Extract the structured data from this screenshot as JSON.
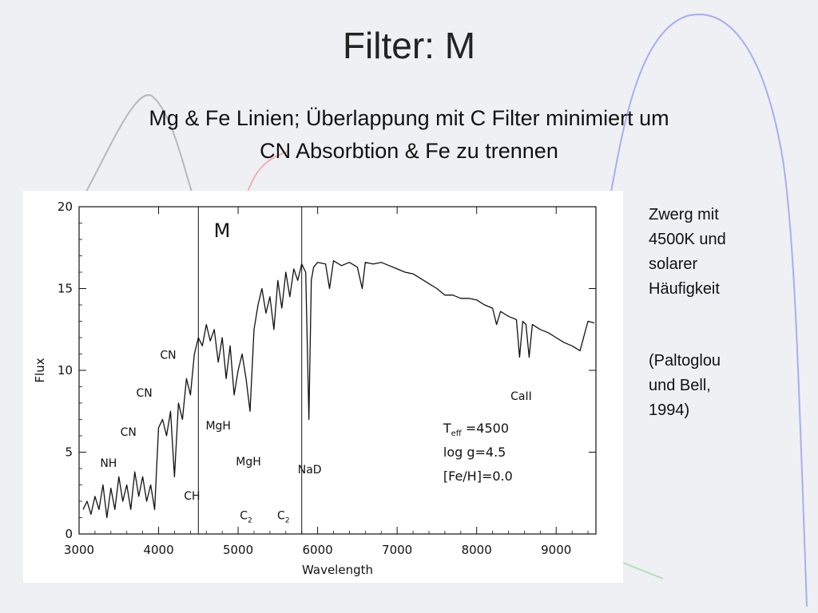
{
  "slide": {
    "title": "Filter: M",
    "subtitle_line1": "Mg & Fe Linien; Überlappung mit C Filter minimiert um",
    "subtitle_line2": "CN Absorbtion & Fe zu trennen",
    "note1_lines": [
      "Zwerg mit",
      "4500K und",
      "solarer",
      "Häufigkeit"
    ],
    "note2_lines": [
      "(Paltoglou",
      "und Bell,",
      "1994)"
    ]
  },
  "colors": {
    "background": "#eef0f4",
    "figure_background": "#ffffff",
    "curve_blue": "#a8aef0",
    "curve_gray": "#b8b8b8",
    "curve_red": "#f0b0b0",
    "curve_green": "#b0e0b8",
    "ink": "#111111"
  },
  "chart_data": {
    "type": "line",
    "xlabel": "Wavelength",
    "ylabel": "Flux",
    "xlim": [
      3000,
      9500
    ],
    "ylim": [
      0,
      20
    ],
    "xticks": [
      3000,
      4000,
      5000,
      6000,
      7000,
      8000,
      9000
    ],
    "yticks": [
      0,
      5,
      10,
      15,
      20
    ],
    "filter_band": {
      "label": "M",
      "from": 4500,
      "to": 5800
    },
    "series": [
      {
        "x": [
          3050,
          3100,
          3150,
          3200,
          3250,
          3300,
          3350,
          3400,
          3450,
          3500,
          3550,
          3600,
          3650,
          3700,
          3750,
          3800,
          3850,
          3900,
          3950,
          4000,
          4050,
          4100,
          4150,
          4200,
          4250,
          4300,
          4350,
          4400,
          4450,
          4500,
          4550,
          4600,
          4650,
          4700,
          4750,
          4800,
          4850,
          4900,
          4950,
          5000,
          5050,
          5100,
          5150,
          5200,
          5250,
          5300,
          5350,
          5400,
          5450,
          5500,
          5550,
          5600,
          5650,
          5700,
          5750,
          5800,
          5850,
          5890,
          5920,
          5950,
          6000,
          6100,
          6150,
          6200,
          6300,
          6400,
          6500,
          6560,
          6600,
          6700,
          6800,
          6900,
          7000,
          7100,
          7200,
          7300,
          7400,
          7500,
          7600,
          7700,
          7800,
          7900,
          8000,
          8100,
          8200,
          8250,
          8300,
          8400,
          8500,
          8540,
          8580,
          8620,
          8660,
          8700,
          8800,
          8900,
          9000,
          9100,
          9200,
          9300,
          9400,
          9480
        ],
        "y": [
          1.5,
          2.0,
          1.2,
          2.3,
          1.5,
          3.0,
          1.0,
          2.8,
          1.5,
          3.5,
          2.0,
          3.0,
          1.5,
          3.8,
          2.3,
          3.5,
          2.0,
          3.0,
          1.5,
          6.5,
          7.0,
          6.0,
          7.5,
          3.5,
          8.0,
          7.0,
          9.5,
          8.5,
          11.0,
          12.0,
          11.5,
          12.8,
          11.8,
          12.5,
          10.5,
          12.0,
          9.5,
          11.5,
          8.5,
          10.0,
          11.0,
          9.5,
          7.5,
          12.5,
          14.0,
          15.0,
          13.5,
          14.5,
          12.5,
          15.5,
          13.8,
          16.0,
          14.5,
          16.2,
          15.5,
          16.5,
          16.0,
          7.0,
          15.5,
          16.3,
          16.6,
          16.5,
          15.0,
          16.7,
          16.4,
          16.6,
          16.3,
          15.0,
          16.6,
          16.5,
          16.6,
          16.4,
          16.2,
          16.0,
          15.9,
          15.6,
          15.3,
          15.0,
          14.6,
          14.6,
          14.4,
          14.4,
          14.3,
          14.0,
          13.8,
          12.8,
          13.6,
          13.3,
          13.1,
          10.8,
          13.0,
          12.8,
          10.8,
          12.8,
          12.5,
          12.3,
          12.0,
          11.7,
          11.5,
          11.2,
          13.0,
          12.9
        ]
      }
    ],
    "annotations": [
      {
        "text": "NH",
        "x": 3370,
        "y": 4.1
      },
      {
        "text": "CN",
        "x": 3620,
        "y": 6.0
      },
      {
        "text": "CN",
        "x": 3820,
        "y": 8.4
      },
      {
        "text": "CN",
        "x": 4120,
        "y": 10.7
      },
      {
        "text": "CH",
        "x": 4420,
        "y": 2.1
      },
      {
        "text": "MgH",
        "x": 4750,
        "y": 6.4
      },
      {
        "text": "MgH",
        "x": 5130,
        "y": 4.2
      },
      {
        "text": "C",
        "sub": "2",
        "x": 5100,
        "y": 0.9
      },
      {
        "text": "C",
        "sub": "2",
        "x": 5570,
        "y": 0.9
      },
      {
        "text": "NaD",
        "x": 5900,
        "y": 3.7
      },
      {
        "text": "CaII",
        "x": 8560,
        "y": 8.2
      }
    ],
    "params": [
      {
        "label": "T",
        "sub": "eff",
        "value": "=4500"
      },
      {
        "label": "log g=4.5"
      },
      {
        "label": "[Fe/H]=0.0"
      }
    ]
  }
}
